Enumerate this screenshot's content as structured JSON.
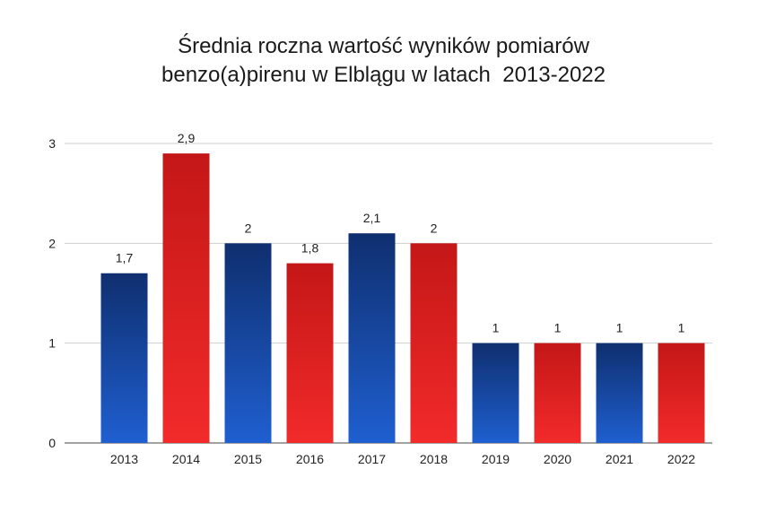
{
  "chart_data": {
    "type": "bar",
    "title_line1": "Średnia roczna wartość wyników pomiarów",
    "title_line2": "benzo(a)pirenu w Elblągu w latach  2013-2022",
    "categories": [
      "2013",
      "2014",
      "2015",
      "2016",
      "2017",
      "2018",
      "2019",
      "2020",
      "2021",
      "2022"
    ],
    "values": [
      1.7,
      2.9,
      2.0,
      1.8,
      2.1,
      2.0,
      1.0,
      1.0,
      1.0,
      1.0
    ],
    "data_labels": [
      "1,7",
      "2,9",
      "2",
      "1,8",
      "2,1",
      "2",
      "1",
      "1",
      "1",
      "1"
    ],
    "yticks": [
      "0",
      "1",
      "2",
      "3"
    ],
    "ylim": [
      0,
      3
    ],
    "xlabel": "",
    "ylabel": "",
    "grid": true,
    "bar_gradients": {
      "blue": [
        "#0f2f6f",
        "#1f5fd0"
      ],
      "red": [
        "#c41717",
        "#f22a2a"
      ]
    }
  }
}
